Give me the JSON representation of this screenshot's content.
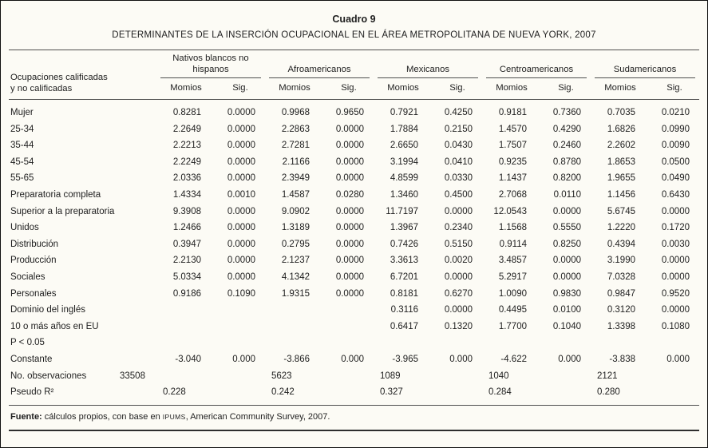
{
  "title": "Cuadro 9",
  "subtitle": "DETERMINANTES DE LA INSERCIÓN OCUPACIONAL EN EL ÁREA METROPOLITANA DE NUEVA YORK, 2007",
  "colors": {
    "background": "#fcfbf5",
    "rule": "#4f4f4f",
    "text": "#1e1e1e"
  },
  "table": {
    "row_header_line1": "Ocupaciones calificadas",
    "row_header_line2": "y no calificadas",
    "groups": [
      "Nativos blancos no hispanos",
      "Afroamericanos",
      "Mexicanos",
      "Centroamericanos",
      "Sudamericanos"
    ],
    "subheaders": [
      "Momios",
      "Sig."
    ],
    "rows": [
      {
        "label": "Mujer",
        "values": [
          "0.8281",
          "0.0000",
          "0.9968",
          "0.9650",
          "0.7921",
          "0.4250",
          "0.9181",
          "0.7360",
          "0.7035",
          "0.0210"
        ]
      },
      {
        "label": "25-34",
        "values": [
          "2.2649",
          "0.0000",
          "2.2863",
          "0.0000",
          "1.7884",
          "0.2150",
          "1.4570",
          "0.4290",
          "1.6826",
          "0.0990"
        ]
      },
      {
        "label": "35-44",
        "values": [
          "2.2213",
          "0.0000",
          "2.7281",
          "0.0000",
          "2.6650",
          "0.0430",
          "1.7507",
          "0.2460",
          "2.2602",
          "0.0090"
        ]
      },
      {
        "label": "45-54",
        "values": [
          "2.2249",
          "0.0000",
          "2.1166",
          "0.0000",
          "3.1994",
          "0.0410",
          "0.9235",
          "0.8780",
          "1.8653",
          "0.0500"
        ]
      },
      {
        "label": "55-65",
        "values": [
          "2.0336",
          "0.0000",
          "2.3949",
          "0.0000",
          "4.8599",
          "0.0330",
          "1.1437",
          "0.8200",
          "1.9655",
          "0.0490"
        ]
      },
      {
        "label": "Preparatoria completa",
        "values": [
          "1.4334",
          "0.0010",
          "1.4587",
          "0.0280",
          "1.3460",
          "0.4500",
          "2.7068",
          "0.0110",
          "1.1456",
          "0.6430"
        ]
      },
      {
        "label": "Superior a la preparatoria",
        "values": [
          "9.3908",
          "0.0000",
          "9.0902",
          "0.0000",
          "11.7197",
          "0.0000",
          "12.0543",
          "0.0000",
          "5.6745",
          "0.0000"
        ]
      },
      {
        "label": "Unidos",
        "values": [
          "1.2466",
          "0.0000",
          "1.3189",
          "0.0000",
          "1.3967",
          "0.2340",
          "1.1568",
          "0.5550",
          "1.2220",
          "0.1720"
        ]
      },
      {
        "label": "Distribución",
        "values": [
          "0.3947",
          "0.0000",
          "0.2795",
          "0.0000",
          "0.7426",
          "0.5150",
          "0.9114",
          "0.8250",
          "0.4394",
          "0.0030"
        ]
      },
      {
        "label": "Producción",
        "values": [
          "2.2130",
          "0.0000",
          "2.1237",
          "0.0000",
          "3.3613",
          "0.0020",
          "3.4857",
          "0.0000",
          "3.1990",
          "0.0000"
        ]
      },
      {
        "label": "Sociales",
        "values": [
          "5.0334",
          "0.0000",
          "4.1342",
          "0.0000",
          "6.7201",
          "0.0000",
          "5.2917",
          "0.0000",
          "7.0328",
          "0.0000"
        ]
      },
      {
        "label": "Personales",
        "values": [
          "0.9186",
          "0.1090",
          "1.9315",
          "0.0000",
          "0.8181",
          "0.6270",
          "1.0090",
          "0.9830",
          "0.9847",
          "0.9520"
        ]
      },
      {
        "label": "Dominio del inglés",
        "values": [
          "",
          "",
          "",
          "",
          "0.3116",
          "0.0000",
          "0.4495",
          "0.0100",
          "0.3120",
          "0.0000"
        ]
      },
      {
        "label": "10 o más años en EU",
        "values": [
          "",
          "",
          "",
          "",
          "0.6417",
          "0.1320",
          "1.7700",
          "0.1040",
          "1.3398",
          "0.1080"
        ]
      },
      {
        "label": "P < 0.05",
        "values": [
          "",
          "",
          "",
          "",
          "",
          "",
          "",
          "",
          "",
          ""
        ]
      },
      {
        "label": "Constante",
        "values": [
          "-3.040",
          "0.000",
          "-3.866",
          "0.000",
          "-3.965",
          "0.000",
          "-4.622",
          "0.000",
          "-3.838",
          "0.000"
        ]
      },
      {
        "label": "No. observaciones",
        "key": "no_observaciones",
        "span": true,
        "values": [
          "33508",
          "5623",
          "1089",
          "1040",
          "2121"
        ]
      },
      {
        "label": "Pseudo R²",
        "key": "pseudo_r2",
        "span": true,
        "values": [
          "0.228",
          "0.242",
          "0.327",
          "0.284",
          "0.280"
        ]
      }
    ]
  },
  "footer": {
    "prefix": "Fuente:",
    "text_before": " cálculos propios, con base en ",
    "smallcaps": "IPUMS",
    "text_after": ", American Community Survey, 2007."
  }
}
